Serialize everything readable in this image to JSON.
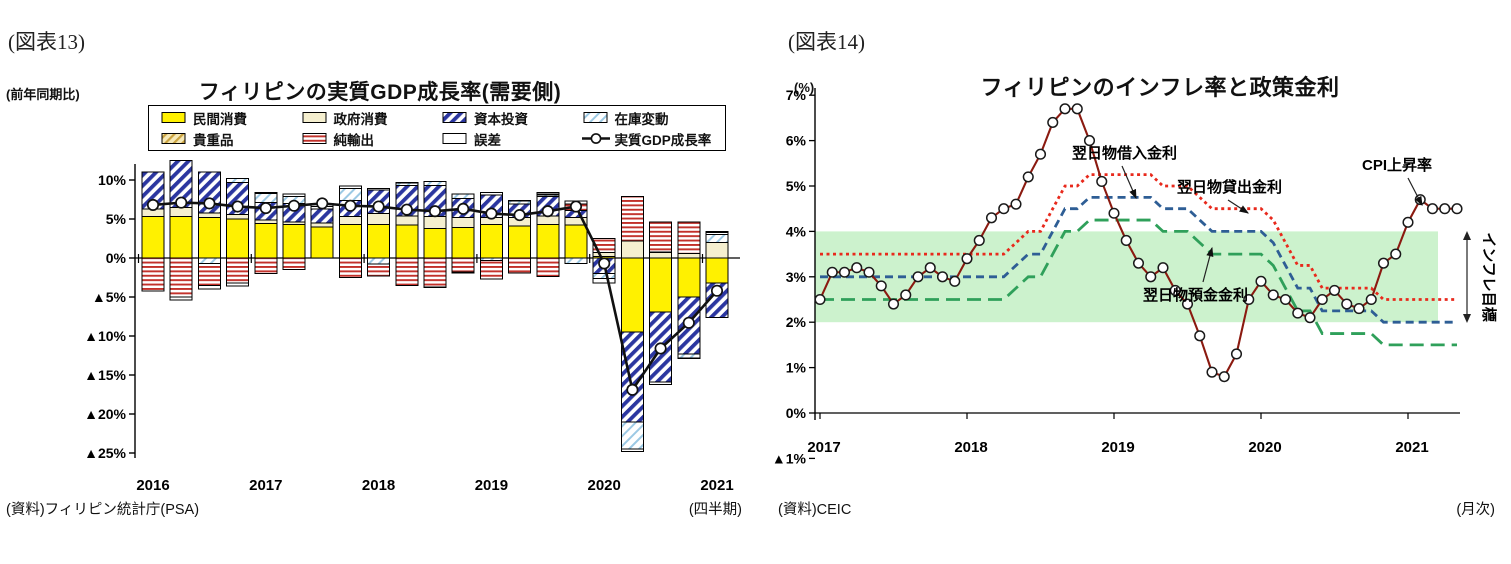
{
  "left_chart": {
    "fig_label": "(図表13)",
    "axis_note": "(前年同期比)",
    "title": "フィリピンの実質GDP成長率(需要側)",
    "source": "(資料)フィリピン統計庁(PSA)",
    "period_note": "(四半期)",
    "y_tick_labels": [
      "10%",
      "5%",
      "0%",
      "▲5%",
      "▲10%",
      "▲15%",
      "▲20%",
      "▲25%"
    ],
    "legend": [
      {
        "label": "民間消費",
        "swatch": "yellow"
      },
      {
        "label": "政府消費",
        "swatch": "cream"
      },
      {
        "label": "資本投資",
        "swatch": "hatch-blue"
      },
      {
        "label": "在庫変動",
        "swatch": "hatch-light"
      },
      {
        "label": "貴重品",
        "swatch": "hatch-tan"
      },
      {
        "label": "純輸出",
        "swatch": "hatch-red"
      },
      {
        "label": "誤差",
        "swatch": "white"
      },
      {
        "label": "実質GDP成長率",
        "swatch": "gdp-line"
      }
    ]
  },
  "right_chart": {
    "fig_label": "(図表14)",
    "unit_note": "(%)",
    "title": "フィリピンのインフレ率と政策金利",
    "source": "(資料)CEIC",
    "period_note": "(月次)",
    "y_tick_labels": [
      "7%",
      "6%",
      "5%",
      "4%",
      "3%",
      "2%",
      "1%",
      "0%",
      "▲1%"
    ],
    "annotations": {
      "borrowing": "翌日物借入金利",
      "lending": "翌日物貸出金利",
      "deposit": "翌日物預金金利",
      "cpi": "CPI上昇率",
      "target_band": "インフレ目標"
    }
  },
  "chart_data": [
    {
      "type": "bar",
      "title": "フィリピンの実質GDP成長率(需要側)",
      "x_year_labels": [
        "2016",
        "2017",
        "2018",
        "2019",
        "2020",
        "2021"
      ],
      "quarters_per_year": 4,
      "n_bars": 21,
      "ylabel": "前年同期比(%)",
      "ylim": [
        -26,
        13
      ],
      "y_ticks_pct": [
        10,
        5,
        0,
        -5,
        -10,
        -15,
        -20,
        -25
      ],
      "series": [
        {
          "name": "民間消費",
          "swatch": "yellow",
          "values": [
            5.3,
            5.3,
            5.2,
            5.0,
            4.4,
            4.3,
            4.0,
            4.3,
            4.3,
            4.2,
            3.8,
            3.9,
            4.3,
            4.1,
            4.3,
            4.2,
            0.2,
            -9.5,
            -6.9,
            -5.0,
            -3.2
          ]
        },
        {
          "name": "政府消費",
          "swatch": "cream",
          "values": [
            1.0,
            1.2,
            0.6,
            0.6,
            0.5,
            0.3,
            0.5,
            1.0,
            1.4,
            1.2,
            1.5,
            1.3,
            0.9,
            1.1,
            1.1,
            1.0,
            0.5,
            2.2,
            0.7,
            0.6,
            2.0
          ]
        },
        {
          "name": "資本投資",
          "swatch": "hatch-blue",
          "values": [
            4.7,
            6.0,
            5.2,
            4.1,
            2.2,
            2.4,
            1.8,
            2.1,
            3.0,
            3.9,
            4.0,
            2.4,
            2.9,
            1.7,
            2.5,
            0.9,
            -2.0,
            -11.5,
            -9.0,
            -7.3,
            -4.4
          ]
        },
        {
          "name": "在庫変動",
          "swatch": "hatch-light",
          "values": [
            0.0,
            0.0,
            -0.7,
            0.5,
            1.2,
            0.9,
            0.0,
            1.5,
            -0.8,
            0.3,
            0.5,
            0.6,
            -0.3,
            0.4,
            0.2,
            -0.7,
            -0.6,
            -3.5,
            0.1,
            -0.5,
            1.0
          ]
        },
        {
          "name": "貴重品",
          "swatch": "hatch-tan",
          "values": [
            0.0,
            0.0,
            0.0,
            0.0,
            0.0,
            0.0,
            0.0,
            0.0,
            0.0,
            0.0,
            0.0,
            0.0,
            0.0,
            0.0,
            0.1,
            0.0,
            0.0,
            0.0,
            0.0,
            0.0,
            0.0
          ]
        },
        {
          "name": "純輸出",
          "swatch": "hatch-red",
          "values": [
            -4.2,
            -5.0,
            -2.8,
            -3.2,
            -2.0,
            -1.5,
            0.3,
            -2.5,
            -1.5,
            -3.5,
            -3.7,
            -1.8,
            -2.4,
            -1.9,
            -2.4,
            0.8,
            1.8,
            5.7,
            3.8,
            4.0,
            0.3
          ]
        },
        {
          "name": "誤差",
          "swatch": "white",
          "values": [
            0.0,
            -0.4,
            -0.5,
            -0.4,
            0.1,
            0.3,
            0.4,
            0.3,
            0.2,
            0.1,
            -0.1,
            -0.1,
            0.3,
            0.1,
            0.2,
            0.4,
            -0.6,
            -0.3,
            -0.3,
            -0.1,
            0.1
          ]
        }
      ],
      "line_series": {
        "name": "実質GDP成長率",
        "color": "#111111",
        "values": [
          6.8,
          7.1,
          7.0,
          6.6,
          6.4,
          6.7,
          7.0,
          6.7,
          6.6,
          6.2,
          6.0,
          6.3,
          5.7,
          5.5,
          6.0,
          6.6,
          -0.7,
          -16.9,
          -11.6,
          -8.3,
          -4.2
        ]
      }
    },
    {
      "type": "line",
      "title": "フィリピンのインフレ率と政策金利",
      "x_start": "2017-01",
      "x_end": "2021-05",
      "x_year_labels": [
        "2017",
        "2018",
        "2019",
        "2020",
        "2021"
      ],
      "ylim": [
        -1,
        7
      ],
      "y_ticks_pct": [
        7,
        6,
        5,
        4,
        3,
        2,
        1,
        0,
        -1
      ],
      "band": {
        "label": "インフレ目標",
        "from_pct": 2,
        "to_pct": 4,
        "color": "#CCF2CD"
      },
      "series": [
        {
          "name": "翌日物貸出金利",
          "style": "dotted",
          "color": "#E8291C",
          "values": [
            3.5,
            3.5,
            3.5,
            3.5,
            3.5,
            3.5,
            3.5,
            3.5,
            3.5,
            3.5,
            3.5,
            3.5,
            3.5,
            3.5,
            3.5,
            3.5,
            3.75,
            4.0,
            4.0,
            4.5,
            5.0,
            5.0,
            5.25,
            5.25,
            5.25,
            5.25,
            5.25,
            5.25,
            5.0,
            5.0,
            5.0,
            4.75,
            4.5,
            4.5,
            4.5,
            4.5,
            4.5,
            4.25,
            3.75,
            3.25,
            3.25,
            2.75,
            2.75,
            2.75,
            2.75,
            2.75,
            2.5,
            2.5,
            2.5,
            2.5,
            2.5,
            2.5,
            2.5
          ]
        },
        {
          "name": "翌日物借入金利",
          "style": "dashed",
          "color": "#2E5E95",
          "values": [
            3.0,
            3.0,
            3.0,
            3.0,
            3.0,
            3.0,
            3.0,
            3.0,
            3.0,
            3.0,
            3.0,
            3.0,
            3.0,
            3.0,
            3.0,
            3.0,
            3.25,
            3.5,
            3.5,
            4.0,
            4.5,
            4.5,
            4.75,
            4.75,
            4.75,
            4.75,
            4.75,
            4.75,
            4.5,
            4.5,
            4.5,
            4.25,
            4.0,
            4.0,
            4.0,
            4.0,
            4.0,
            3.75,
            3.25,
            2.75,
            2.75,
            2.25,
            2.25,
            2.25,
            2.25,
            2.25,
            2.0,
            2.0,
            2.0,
            2.0,
            2.0,
            2.0,
            2.0
          ]
        },
        {
          "name": "翌日物預金金利",
          "style": "longdash",
          "color": "#2FA05A",
          "values": [
            2.5,
            2.5,
            2.5,
            2.5,
            2.5,
            2.5,
            2.5,
            2.5,
            2.5,
            2.5,
            2.5,
            2.5,
            2.5,
            2.5,
            2.5,
            2.5,
            2.75,
            3.0,
            3.0,
            3.5,
            4.0,
            4.0,
            4.25,
            4.25,
            4.25,
            4.25,
            4.25,
            4.25,
            4.0,
            4.0,
            4.0,
            3.75,
            3.5,
            3.5,
            3.5,
            3.5,
            3.5,
            3.25,
            2.75,
            2.25,
            2.25,
            1.75,
            1.75,
            1.75,
            1.75,
            1.75,
            1.5,
            1.5,
            1.5,
            1.5,
            1.5,
            1.5,
            1.5
          ]
        },
        {
          "name": "CPI上昇率",
          "style": "line-markers",
          "color": "#8B1A10",
          "values": [
            2.5,
            3.1,
            3.1,
            3.2,
            3.1,
            2.8,
            2.4,
            2.6,
            3.0,
            3.2,
            3.0,
            2.9,
            3.4,
            3.8,
            4.3,
            4.5,
            4.6,
            5.2,
            5.7,
            6.4,
            6.7,
            6.7,
            6.0,
            5.1,
            4.4,
            3.8,
            3.3,
            3.0,
            3.2,
            2.7,
            2.4,
            1.7,
            0.9,
            0.8,
            1.3,
            2.5,
            2.9,
            2.6,
            2.5,
            2.2,
            2.1,
            2.5,
            2.7,
            2.4,
            2.3,
            2.5,
            3.3,
            3.5,
            4.2,
            4.7,
            4.5,
            4.5,
            4.5
          ]
        }
      ]
    }
  ],
  "colors": {
    "bar_yellow": "#FFF100",
    "bar_cream": "#F5EFCF",
    "hatch_blue": "#2B36A0",
    "hatch_light": "#9CC9E4",
    "hatch_tan_bg": "#F6E9B8",
    "hatch_tan": "#C9A23F",
    "hatch_red": "#C2302A",
    "band_green": "#CCF2CD",
    "gdp_line": "#111111",
    "cpi_line": "#8B1A10"
  }
}
